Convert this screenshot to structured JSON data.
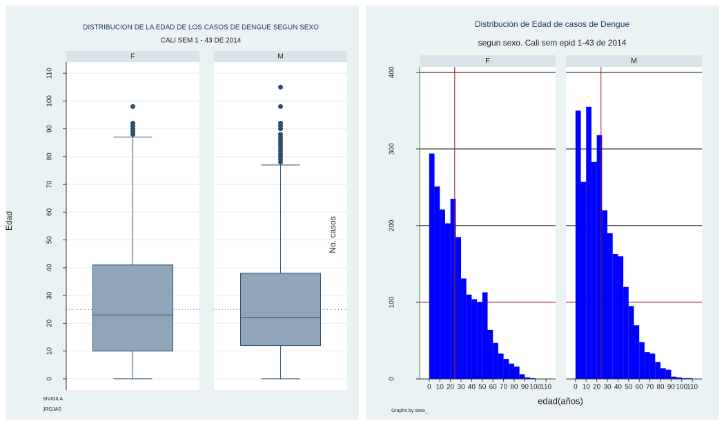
{
  "chart_data": [
    {
      "type": "box",
      "title": "DISTRIBUCION DE LA EDAD DE LOS CASOS DE DENGUE SEGUN SEXO",
      "subtitle": "CALI SEM 1 - 43 DE 2014",
      "y_label": "Edad",
      "notes": [
        "SIVIGILA",
        "JROJAS"
      ],
      "ylim": [
        -4,
        114
      ],
      "yticks": [
        0,
        10,
        20,
        30,
        40,
        50,
        60,
        70,
        80,
        90,
        100,
        110
      ],
      "ref_line": 25,
      "color": "#8fa6b8",
      "edge_color": "#2a4f6e",
      "series": [
        {
          "name": "F",
          "whislo": 0,
          "q1": 10,
          "med": 23,
          "q3": 41,
          "whishi": 87,
          "fliers": [
            88,
            89,
            90,
            91,
            92,
            98
          ]
        },
        {
          "name": "M",
          "whislo": 0,
          "q1": 12,
          "med": 22,
          "q3": 38,
          "whishi": 77,
          "fliers": [
            78,
            79,
            80,
            81,
            82,
            83,
            84,
            85,
            86,
            87,
            88,
            90,
            91,
            92,
            98,
            105
          ]
        }
      ]
    },
    {
      "type": "histogram",
      "title": "Distribución de Edad de casos de Dengue",
      "subtitle": "segun sexo. Cali sem epid 1-43 de 2014",
      "x_label": "edad(años)",
      "y_label": "No. casos",
      "note": "Graphs by sexo_",
      "xlim": [
        -9,
        119
      ],
      "xticks": [
        0,
        10,
        20,
        30,
        40,
        50,
        60,
        70,
        80,
        90,
        100,
        110
      ],
      "ylim": [
        0,
        407
      ],
      "yticks": [
        0,
        100,
        200,
        300,
        400
      ],
      "grid": true,
      "grid_color": "#000000",
      "ref_y": 100,
      "ref_x": 24,
      "ref_color": "#9b1b30",
      "axis_color": "#2e8b2e",
      "bins": [
        0,
        5,
        10,
        15,
        20,
        25,
        30,
        35,
        40,
        45,
        50,
        55,
        60,
        65,
        70,
        75,
        80,
        85,
        90,
        95,
        100,
        105,
        110
      ],
      "series": [
        {
          "name": "F",
          "color": "#0000ff",
          "values": [
            294,
            251,
            221,
            203,
            235,
            185,
            131,
            110,
            104,
            100,
            113,
            64,
            47,
            33,
            26,
            20,
            16,
            6,
            2,
            1,
            0,
            0
          ]
        },
        {
          "name": "M",
          "color": "#0000ff",
          "values": [
            350,
            257,
            355,
            283,
            318,
            220,
            190,
            163,
            160,
            120,
            95,
            70,
            48,
            35,
            33,
            22,
            14,
            12,
            3,
            2,
            1,
            1
          ]
        }
      ]
    }
  ]
}
